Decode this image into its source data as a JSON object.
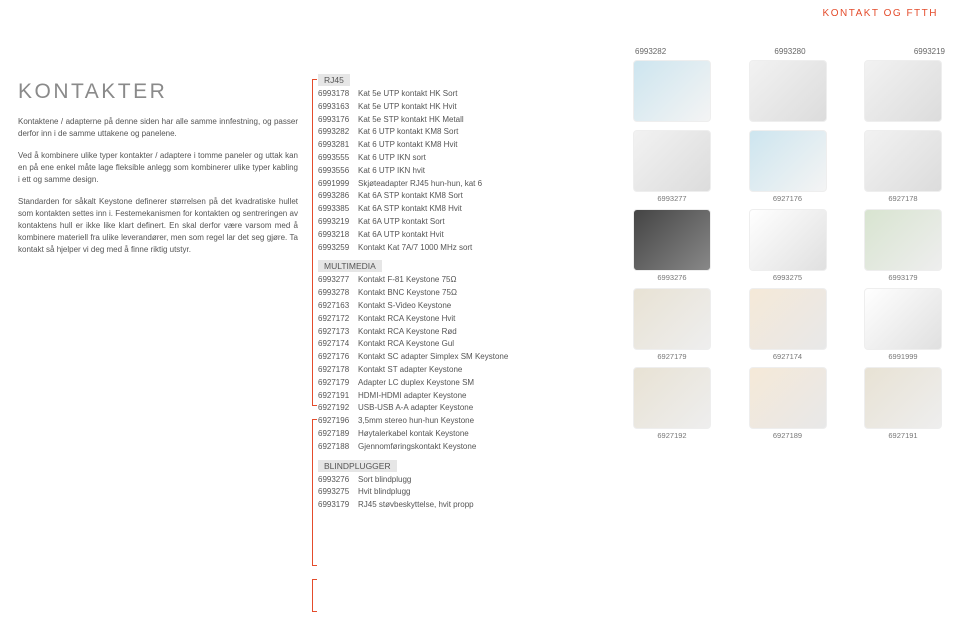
{
  "header": {
    "title": "KONTAKT OG FTTH"
  },
  "left": {
    "title": "KONTAKTER",
    "p1": "Kontaktene / adapterne på denne siden har alle samme innfestning, og passer derfor inn i de samme uttakene og panelene.",
    "p2": "Ved å kombinere ulike typer kontakter / adaptere i tomme paneler og uttak kan en på ene enkel måte lage fleksible anlegg som kombinerer ulike typer kabling i ett og samme design.",
    "p3": "Standarden for såkalt Keystone definerer størrelsen på det kvadratiske hullet som kontakten settes inn i. Festemekanismen for kontakten og sentreringen av kontaktens hull er ikke like klart definert. En skal derfor være varsom med å kombinere materiell fra ulike leverandører, men som regel lar det seg gjøre. Ta kontakt så hjelper vi deg med å finne riktig utstyr."
  },
  "top_labels": {
    "a": "6993282",
    "b": "6993280",
    "c": "6993219"
  },
  "sections": {
    "rj45": {
      "head": "RJ45",
      "items": [
        {
          "code": "6993178",
          "desc": "Kat 5e UTP kontakt HK Sort"
        },
        {
          "code": "6993163",
          "desc": "Kat 5e UTP kontakt HK Hvit"
        },
        {
          "code": "6993176",
          "desc": "Kat 5e STP kontakt HK Metall"
        },
        {
          "code": "6993282",
          "desc": "Kat 6 UTP kontakt KM8 Sort"
        },
        {
          "code": "6993281",
          "desc": "Kat 6 UTP kontakt KM8 Hvit"
        },
        {
          "code": "6993555",
          "desc": "Kat 6 UTP IKN sort"
        },
        {
          "code": "6993556",
          "desc": "Kat 6 UTP IKN hvit"
        },
        {
          "code": "6991999",
          "desc": "Skjøteadapter RJ45 hun-hun, kat 6"
        },
        {
          "code": "6993286",
          "desc": "Kat 6A STP kontakt KM8 Sort"
        },
        {
          "code": "6993385",
          "desc": "Kat 6A STP kontakt KM8 Hvit"
        },
        {
          "code": "6993219",
          "desc": "Kat 6A UTP kontakt Sort"
        },
        {
          "code": "6993218",
          "desc": "Kat 6A UTP kontakt Hvit"
        },
        {
          "code": "6993259",
          "desc": "Kontakt Kat 7A/7 1000 MHz sort"
        }
      ]
    },
    "multimedia": {
      "head": "MULTIMEDIA",
      "items": [
        {
          "code": "6993277",
          "desc": "Kontakt F-81 Keystone 75Ω"
        },
        {
          "code": "6993278",
          "desc": "Kontakt BNC Keystone 75Ω"
        },
        {
          "code": "6927163",
          "desc": "Kontakt S-Video Keystone"
        },
        {
          "code": "6927172",
          "desc": "Kontakt RCA Keystone Hvit"
        },
        {
          "code": "6927173",
          "desc": "Kontakt RCA Keystone Rød"
        },
        {
          "code": "6927174",
          "desc": "Kontakt RCA Keystone Gul"
        },
        {
          "code": "6927176",
          "desc": "Kontakt SC adapter Simplex SM Keystone"
        },
        {
          "code": "6927178",
          "desc": "Kontakt ST adapter Keystone"
        },
        {
          "code": "6927179",
          "desc": "Adapter LC duplex Keystone SM"
        },
        {
          "code": "6927191",
          "desc": "HDMI-HDMI adapter Keystone"
        },
        {
          "code": "6927192",
          "desc": "USB-USB A-A adapter Keystone"
        },
        {
          "code": "6927196",
          "desc": "3,5mm stereo hun-hun Keystone"
        },
        {
          "code": "6927189",
          "desc": "Høytalerkabel kontak Keystone"
        },
        {
          "code": "6927188",
          "desc": "Gjennomføringskontakt Keystone"
        }
      ]
    },
    "blindplugger": {
      "head": "BLINDPLUGGER",
      "items": [
        {
          "code": "6993276",
          "desc": "Sort blindplugg"
        },
        {
          "code": "6993275",
          "desc": "Hvit blindplugg"
        },
        {
          "code": "6993179",
          "desc": "RJ45 støvbeskyttelse, hvit propp"
        }
      ]
    }
  },
  "grid": {
    "rows": [
      {
        "labels": [
          "",
          "",
          ""
        ],
        "shades": [
          "shade1",
          "shade2",
          "shade2"
        ],
        "pos": "top"
      },
      {
        "labels": [
          "6993277",
          "6927176",
          "6927178"
        ],
        "shades": [
          "shade2",
          "shade1",
          "shade2"
        ]
      },
      {
        "labels": [
          "6993276",
          "6993275",
          "6993179"
        ],
        "shades": [
          "shade4",
          "shade5",
          "shade6"
        ]
      },
      {
        "labels": [
          "6927179",
          "6927174",
          "6991999"
        ],
        "shades": [
          "shade7",
          "shade3",
          "shade5"
        ]
      },
      {
        "labels": [
          "6927192",
          "6927189",
          "6927191"
        ],
        "shades": [
          "shade7",
          "shade3",
          "shade7"
        ]
      }
    ]
  }
}
